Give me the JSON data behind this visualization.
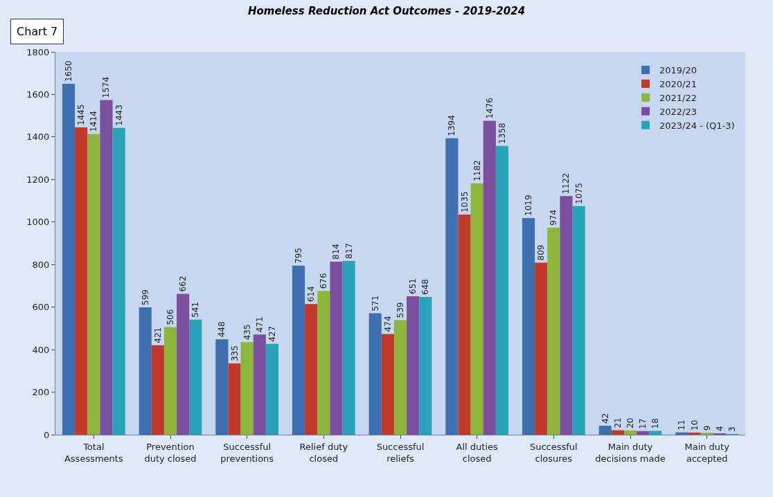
{
  "chart_data": {
    "type": "bar",
    "title": "Homeless Reduction Act Outcomes - 2019-2024",
    "annotations": [
      "Chart 7"
    ],
    "categories": [
      "Total\nAssessments",
      "Prevention\nduty closed",
      "Successful\npreventions",
      "Relief duty\nclosed",
      "Successful\nreliefs",
      "All duties\nclosed",
      "Successful\nclosures",
      "Main duty\ndecisions made",
      "Main duty\naccepted"
    ],
    "series": [
      {
        "name": "2019/20",
        "color": "#3e6fb0",
        "values": [
          1650,
          599,
          448,
          795,
          571,
          1394,
          1019,
          42,
          11
        ]
      },
      {
        "name": "2020/21",
        "color": "#c0392b",
        "values": [
          1445,
          421,
          335,
          614,
          474,
          1035,
          809,
          21,
          10
        ]
      },
      {
        "name": "2021/22",
        "color": "#8db53c",
        "values": [
          1414,
          506,
          435,
          676,
          539,
          1182,
          974,
          20,
          9
        ]
      },
      {
        "name": "2022/23",
        "color": "#7b4f9e",
        "values": [
          1574,
          662,
          471,
          814,
          651,
          1476,
          1122,
          17,
          4
        ]
      },
      {
        "name": "2023/24 - (Q1-3)",
        "color": "#2aa3b8",
        "values": [
          1443,
          541,
          427,
          817,
          648,
          1358,
          1075,
          18,
          3
        ]
      }
    ],
    "ylim": [
      0,
      1800
    ],
    "yticks": [
      0,
      200,
      400,
      600,
      800,
      1000,
      1200,
      1400,
      1600,
      1800
    ],
    "grid": false,
    "legend": "top right",
    "data_labels": true
  }
}
